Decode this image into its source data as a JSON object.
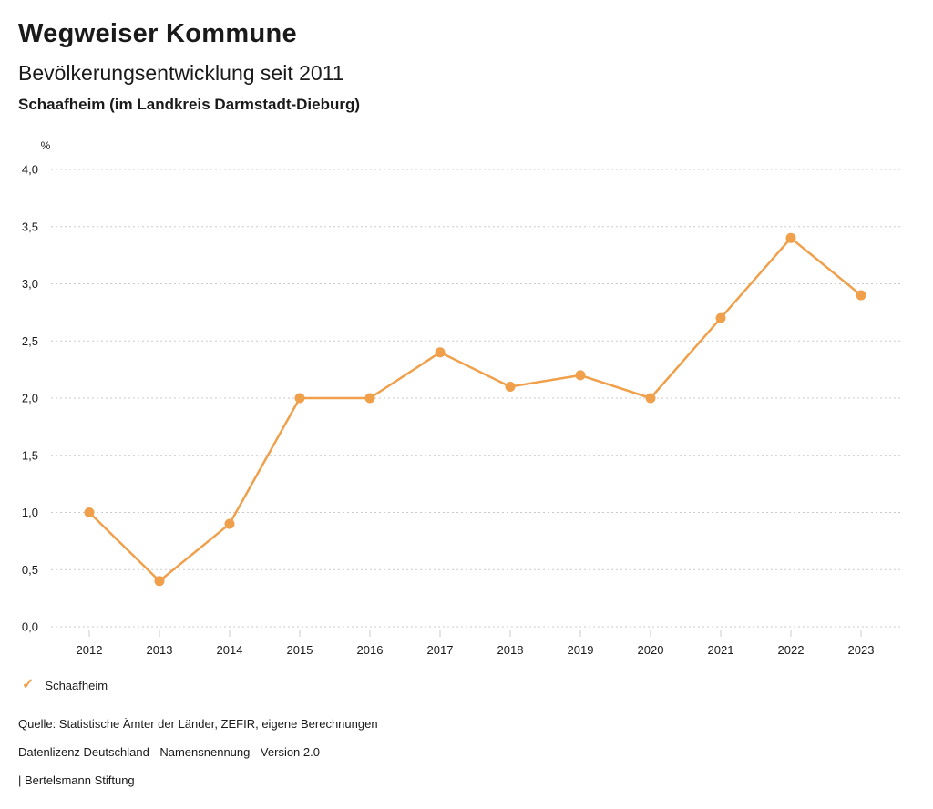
{
  "header": {
    "title": "Wegweiser Kommune",
    "subtitle": "Bevölkerungsentwicklung seit 2011",
    "region": "Schaafheim (im Landkreis Darmstadt-Dieburg)"
  },
  "chart_data": {
    "type": "line",
    "title": "Bevölkerungsentwicklung seit 2011",
    "unit_label": "%",
    "categories": [
      "2012",
      "2013",
      "2014",
      "2015",
      "2016",
      "2017",
      "2018",
      "2019",
      "2020",
      "2021",
      "2022",
      "2023"
    ],
    "series": [
      {
        "name": "Schaafheim",
        "color": "#F0A04B",
        "values": [
          1.0,
          0.4,
          0.9,
          2.0,
          2.0,
          2.4,
          2.1,
          2.2,
          2.0,
          2.7,
          3.4,
          2.9
        ]
      }
    ],
    "ylim": [
      0,
      4
    ],
    "ytick_step": 0.5,
    "ytick_labels": [
      "0,0",
      "0,5",
      "1,0",
      "1,5",
      "2,0",
      "2,5",
      "3,0",
      "3,5",
      "4,0"
    ],
    "grid": "horizontal-dotted",
    "legend_position": "bottom-left"
  },
  "legend": {
    "items": [
      {
        "icon": "check-icon",
        "check_glyph": "✓",
        "label": "Schaafheim"
      }
    ]
  },
  "footer": {
    "source": "Quelle: Statistische Ämter der Länder, ZEFIR, eigene Berechnungen",
    "license": "Datenlizenz Deutschland - Namensnennung - Version 2.0",
    "attribution": "| Bertelsmann Stiftung"
  },
  "colors": {
    "accent": "#F0A04B",
    "grid": "#CBCBCB",
    "text": "#1A1A1A"
  }
}
